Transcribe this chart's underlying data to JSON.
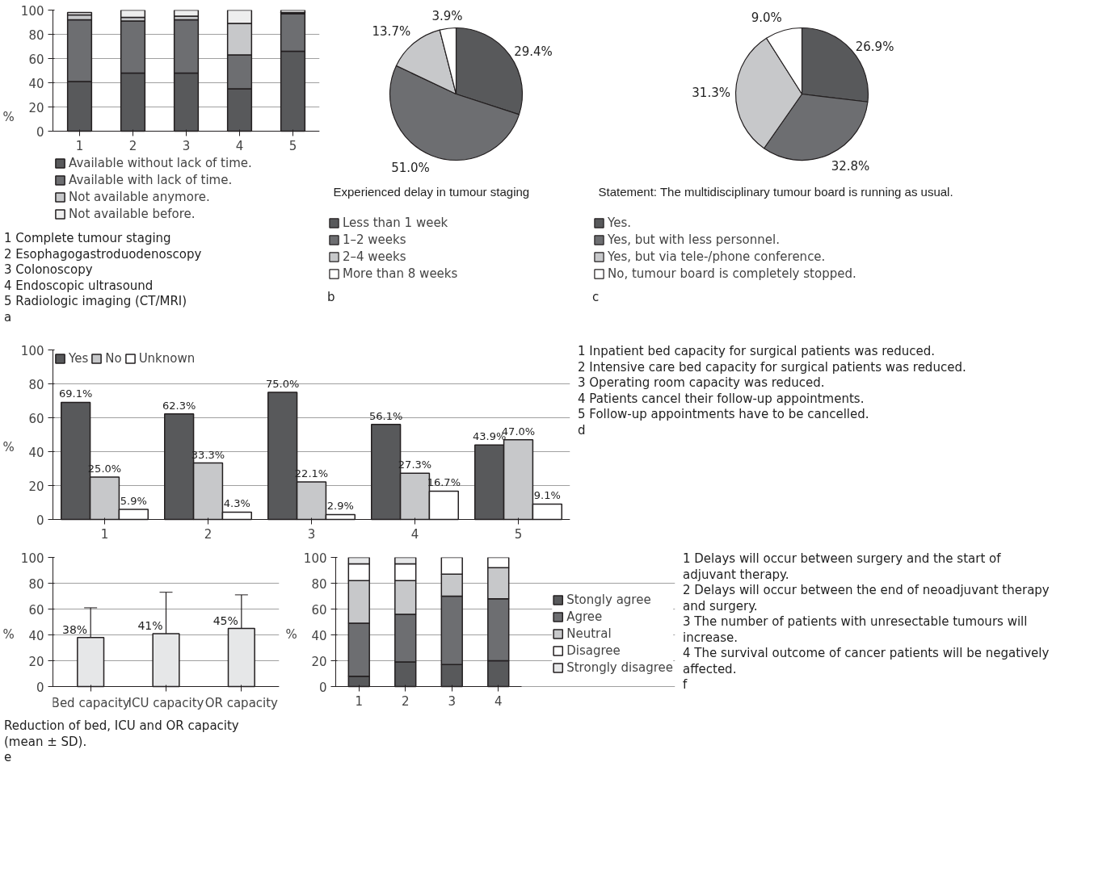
{
  "chart_data": [
    {
      "type": "bar",
      "stacked": true,
      "categories": [
        "1",
        "2",
        "3",
        "4",
        "5"
      ],
      "ylabel": "%",
      "ylim": [
        0,
        100
      ],
      "yticks": [
        0,
        20,
        40,
        60,
        80,
        100
      ],
      "grid": "y",
      "legend": "bottom",
      "series": [
        {
          "name": "Available without lack of time.",
          "color": "#58595b",
          "values": [
            41,
            48,
            48,
            35,
            66
          ]
        },
        {
          "name": "Available with lack of time.",
          "color": "#6d6e71",
          "values": [
            51,
            43,
            44,
            28,
            31
          ]
        },
        {
          "name": "Not available anymore.",
          "color": "#c7c8ca",
          "values": [
            4,
            3,
            3,
            26,
            1
          ]
        },
        {
          "name": "Not available before.",
          "color": "#eeeeee",
          "values": [
            2,
            6,
            5,
            11,
            2
          ]
        }
      ],
      "annotations": [
        "1 Complete tumour staging",
        "2 Esophagogastroduodenoscopy",
        "3 Colonoscopy",
        "4 Endoscopic ultrasound",
        "5 Radiologic imaging (CT/MRI)",
        "a"
      ]
    },
    {
      "type": "pie",
      "title": "Experienced delay in tumour staging",
      "legend": "bottom",
      "categories": [
        "Less than 1 week",
        "1–2 weeks",
        "2–4 weeks",
        "More than 8 weeks"
      ],
      "values": [
        29.4,
        51.0,
        13.7,
        3.9
      ],
      "value_labels": [
        "29.4%",
        "51.0%",
        "13.7%",
        "3.9%"
      ],
      "colors": [
        "#58595b",
        "#6d6e71",
        "#c7c8ca",
        "#ffffff"
      ],
      "annotations": [
        "b"
      ]
    },
    {
      "type": "pie",
      "title": "Statement: The multidisciplinary tumour board is running as usual.",
      "legend": "bottom",
      "categories": [
        "Yes.",
        "Yes, but with less personnel.",
        "Yes, but via tele-/phone conference.",
        "No, tumour board is completely stopped."
      ],
      "values": [
        26.9,
        32.8,
        31.3,
        9.0
      ],
      "value_labels": [
        "26.9%",
        "32.8%",
        "31.3%",
        "9.0%"
      ],
      "colors": [
        "#58595b",
        "#6d6e71",
        "#c7c8ca",
        "#ffffff"
      ],
      "annotations": [
        "c"
      ]
    },
    {
      "type": "bar",
      "categories": [
        "1",
        "2",
        "3",
        "4",
        "5"
      ],
      "ylabel": "%",
      "ylim": [
        0,
        100
      ],
      "yticks": [
        0,
        20,
        40,
        60,
        80,
        100
      ],
      "grid": "y",
      "legend": "top left",
      "series": [
        {
          "name": "Yes",
          "color": "#58595b",
          "values": [
            69.1,
            62.3,
            75.0,
            56.1,
            43.9
          ],
          "value_labels": [
            "69.1%",
            "62.3%",
            "75.0%",
            "56.1%",
            "43.9%"
          ]
        },
        {
          "name": "No",
          "color": "#c7c8ca",
          "values": [
            25.0,
            33.3,
            22.1,
            27.3,
            47.0
          ],
          "value_labels": [
            "25.0%",
            "33.3%",
            "22.1%",
            "27.3%",
            "47.0%"
          ]
        },
        {
          "name": "Unknown",
          "color": "#ffffff",
          "values": [
            5.9,
            4.3,
            2.9,
            16.7,
            9.1
          ],
          "value_labels": [
            "5.9%",
            "4.3%",
            "2.9%",
            "16.7%",
            "9.1%"
          ]
        }
      ],
      "annotations": [
        "1 Inpatient bed capacity for surgical patients was reduced.",
        "2 Intensive care bed capacity for surgical patients was reduced.",
        "3 Operating room capacity was reduced.",
        "4 Patients cancel their follow-up appointments.",
        "5 Follow-up appointments have to be cancelled.",
        "d"
      ]
    },
    {
      "type": "bar",
      "categories": [
        "Bed capacity",
        "ICU capacity",
        "OR capacity"
      ],
      "ylabel": "%",
      "ylim": [
        0,
        100
      ],
      "yticks": [
        0,
        20,
        40,
        60,
        80,
        100
      ],
      "grid": "y",
      "color": "#e6e7e8",
      "values": [
        38,
        41,
        45
      ],
      "value_labels": [
        "38%",
        "41%",
        "45%"
      ],
      "errors": [
        [
          38,
          61
        ],
        [
          41,
          73
        ],
        [
          45,
          71
        ]
      ],
      "annotations": [
        "Reduction of bed, ICU and OR capacity (mean ± SD).",
        "e"
      ]
    },
    {
      "type": "bar",
      "stacked": true,
      "categories": [
        "1",
        "2",
        "3",
        "4"
      ],
      "ylabel": "%",
      "ylim": [
        0,
        100
      ],
      "yticks": [
        0,
        20,
        40,
        60,
        80,
        100
      ],
      "grid": "y",
      "legend": "right",
      "series": [
        {
          "name": "Stongly agree",
          "color": "#58595b",
          "values": [
            8,
            19,
            17,
            20
          ]
        },
        {
          "name": "Agree",
          "color": "#6d6e71",
          "values": [
            41,
            37,
            53,
            48
          ]
        },
        {
          "name": "Neutral",
          "color": "#c7c8ca",
          "values": [
            33,
            26,
            17,
            24
          ]
        },
        {
          "name": "Disagree",
          "color": "#ffffff",
          "values": [
            13,
            13,
            13,
            8
          ]
        },
        {
          "name": "Strongly disagree",
          "color": "#e6e7e8",
          "values": [
            5,
            5,
            0,
            0
          ]
        }
      ],
      "annotations": [
        "1 Delays will occur between surgery and the start of adjuvant therapy.",
        "2 Delays will occur between the end of neoadjuvant therapy and surgery.",
        "3 The number of patients with unresectable tumours will increase.",
        "4 The survival outcome of cancer patients will be negatively affected.",
        "f"
      ]
    }
  ]
}
